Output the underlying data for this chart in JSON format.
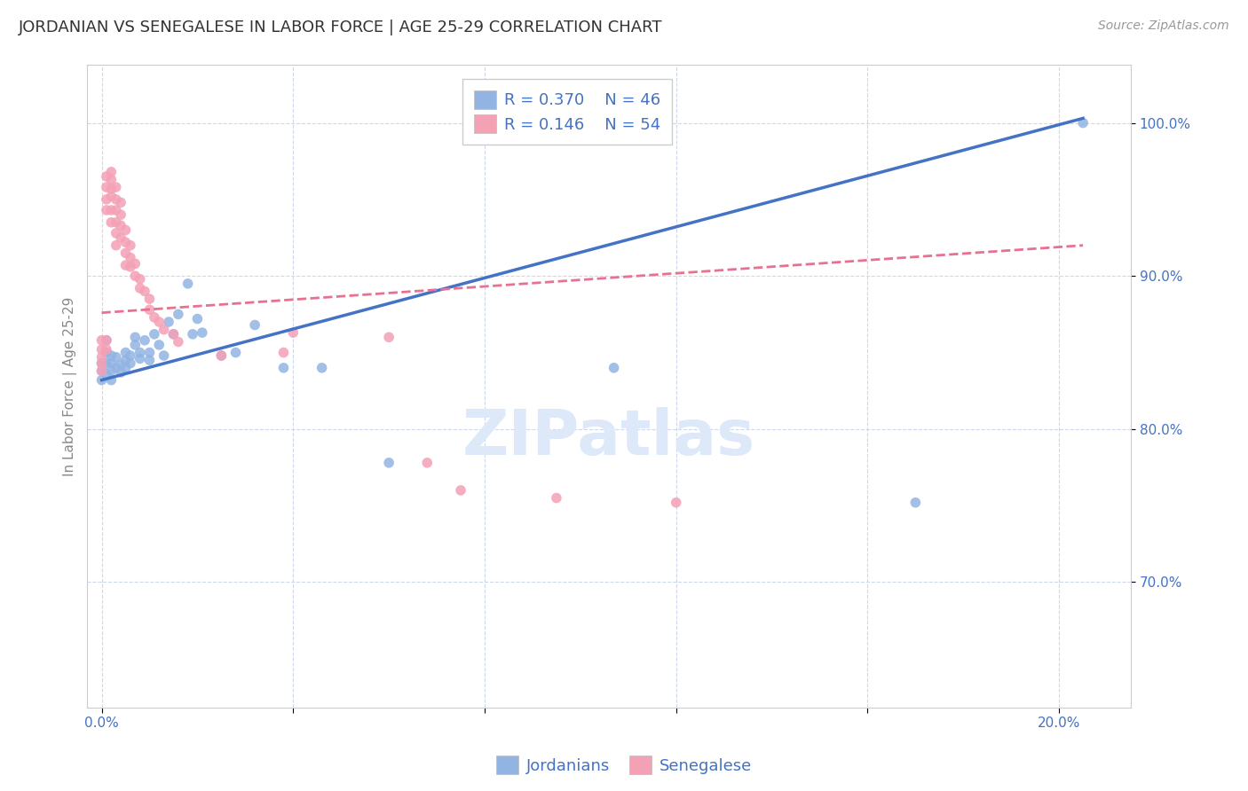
{
  "title": "JORDANIAN VS SENEGALESE IN LABOR FORCE | AGE 25-29 CORRELATION CHART",
  "source": "Source: ZipAtlas.com",
  "ylabel_label": "In Labor Force | Age 25-29",
  "watermark": "ZIPatlas",
  "legend_jordanians": "Jordanians",
  "legend_senegalese": "Senegalese",
  "legend_r_jordan": "0.370",
  "legend_n_jordan": "46",
  "legend_r_senegal": "0.146",
  "legend_n_senegal": "54",
  "x_min": -0.003,
  "x_max": 0.215,
  "y_min": 0.618,
  "y_max": 1.038,
  "x_ticks": [
    0.0,
    0.04,
    0.08,
    0.12,
    0.16,
    0.2
  ],
  "x_tick_labels": [
    "0.0%",
    "",
    "",
    "",
    "",
    "20.0%"
  ],
  "y_ticks": [
    0.7,
    0.8,
    0.9,
    1.0
  ],
  "y_tick_labels": [
    "70.0%",
    "80.0%",
    "90.0%",
    "100.0%"
  ],
  "blue_color": "#92b4e3",
  "pink_color": "#f4a0b5",
  "blue_line_color": "#4472c4",
  "pink_line_color": "#e87090",
  "grid_color": "#c8d4e8",
  "title_color": "#333333",
  "axis_color": "#4472c4",
  "jordanians_x": [
    0.0,
    0.0,
    0.0,
    0.001,
    0.001,
    0.001,
    0.001,
    0.002,
    0.002,
    0.002,
    0.002,
    0.003,
    0.003,
    0.004,
    0.004,
    0.005,
    0.005,
    0.005,
    0.006,
    0.006,
    0.007,
    0.007,
    0.008,
    0.008,
    0.009,
    0.01,
    0.01,
    0.011,
    0.012,
    0.013,
    0.014,
    0.015,
    0.016,
    0.018,
    0.019,
    0.02,
    0.021,
    0.025,
    0.028,
    0.032,
    0.038,
    0.046,
    0.06,
    0.107,
    0.17,
    0.205
  ],
  "jordanians_y": [
    0.843,
    0.838,
    0.832,
    0.858,
    0.85,
    0.843,
    0.836,
    0.848,
    0.843,
    0.838,
    0.832,
    0.847,
    0.84,
    0.842,
    0.837,
    0.85,
    0.845,
    0.84,
    0.848,
    0.843,
    0.86,
    0.855,
    0.85,
    0.846,
    0.858,
    0.85,
    0.845,
    0.862,
    0.855,
    0.848,
    0.87,
    0.862,
    0.875,
    0.895,
    0.862,
    0.872,
    0.863,
    0.848,
    0.85,
    0.868,
    0.84,
    0.84,
    0.778,
    0.84,
    0.752,
    1.0
  ],
  "senegalese_x": [
    0.0,
    0.0,
    0.0,
    0.0,
    0.0,
    0.001,
    0.001,
    0.001,
    0.001,
    0.001,
    0.001,
    0.002,
    0.002,
    0.002,
    0.002,
    0.002,
    0.002,
    0.003,
    0.003,
    0.003,
    0.003,
    0.003,
    0.003,
    0.004,
    0.004,
    0.004,
    0.004,
    0.005,
    0.005,
    0.005,
    0.005,
    0.006,
    0.006,
    0.006,
    0.007,
    0.007,
    0.008,
    0.008,
    0.009,
    0.01,
    0.01,
    0.011,
    0.012,
    0.013,
    0.015,
    0.016,
    0.025,
    0.038,
    0.04,
    0.06,
    0.068,
    0.075,
    0.095,
    0.12
  ],
  "senegalese_y": [
    0.858,
    0.852,
    0.847,
    0.843,
    0.838,
    0.965,
    0.958,
    0.95,
    0.943,
    0.858,
    0.852,
    0.968,
    0.963,
    0.957,
    0.952,
    0.943,
    0.935,
    0.958,
    0.95,
    0.943,
    0.935,
    0.928,
    0.92,
    0.948,
    0.94,
    0.933,
    0.925,
    0.93,
    0.922,
    0.915,
    0.907,
    0.92,
    0.912,
    0.906,
    0.908,
    0.9,
    0.898,
    0.892,
    0.89,
    0.885,
    0.878,
    0.873,
    0.87,
    0.865,
    0.862,
    0.857,
    0.848,
    0.85,
    0.863,
    0.86,
    0.778,
    0.76,
    0.755,
    0.752
  ],
  "background_color": "#ffffff",
  "title_fontsize": 13,
  "source_fontsize": 10,
  "axis_label_fontsize": 11,
  "tick_fontsize": 11,
  "legend_fontsize": 13,
  "watermark_fontsize": 52,
  "watermark_color": "#dde8f8",
  "jordan_trendline_x": [
    0.0,
    0.205
  ],
  "jordan_trendline_y": [
    0.832,
    1.003
  ],
  "senegal_trendline_x": [
    0.0,
    0.205
  ],
  "senegal_trendline_y": [
    0.876,
    0.92
  ]
}
